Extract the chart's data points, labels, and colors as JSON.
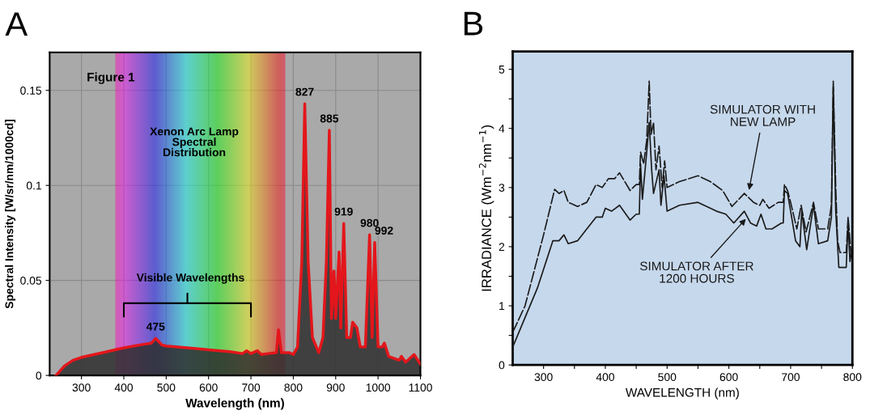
{
  "chart_data": [
    {
      "type": "area",
      "title": "A",
      "xlabel": "Wavelength (nm)",
      "ylabel": "Spectral Intensity [W/sr/nm/1000cd]",
      "xlim": [
        225,
        1100
      ],
      "xticks": [
        300,
        400,
        500,
        600,
        700,
        800,
        900,
        1000,
        1100
      ],
      "ylim": [
        0,
        0.17
      ],
      "yticks": [
        0,
        0.05,
        0.1,
        0.15
      ],
      "grid": true,
      "legend": false,
      "series": [
        {
          "color": "#e3161b",
          "x": [
            240,
            260,
            280,
            300,
            350,
            400,
            450,
            465,
            475,
            490,
            500,
            550,
            600,
            650,
            680,
            690,
            700,
            715,
            725,
            740,
            760,
            765,
            772,
            790,
            800,
            810,
            820,
            827,
            835,
            845,
            860,
            870,
            878,
            885,
            890,
            896,
            900,
            908,
            912,
            919,
            926,
            935,
            940,
            950,
            958,
            970,
            980,
            986,
            992,
            1000,
            1010,
            1015,
            1025,
            1050,
            1055,
            1065,
            1085,
            1100
          ],
          "values": [
            0,
            0.005,
            0.008,
            0.0095,
            0.012,
            0.0145,
            0.0165,
            0.017,
            0.0195,
            0.016,
            0.0155,
            0.0145,
            0.0135,
            0.0125,
            0.0115,
            0.013,
            0.0115,
            0.013,
            0.011,
            0.0115,
            0.012,
            0.024,
            0.012,
            0.012,
            0.011,
            0.015,
            0.06,
            0.143,
            0.06,
            0.02,
            0.012,
            0.02,
            0.06,
            0.129,
            0.03,
            0.055,
            0.03,
            0.065,
            0.025,
            0.08,
            0.02,
            0.02,
            0.028,
            0.025,
            0.015,
            0.015,
            0.074,
            0.02,
            0.07,
            0.015,
            0.015,
            0.017,
            0.01,
            0.008,
            0.01,
            0.007,
            0.011,
            0.006
          ]
        }
      ],
      "annotations": [
        "Figure 1",
        "Xenon Arc Lamp\nSpectral\nDistribution",
        "Visible Wavelengths",
        {
          "text": "475",
          "x": 475,
          "y": 0.0195
        },
        {
          "text": "827",
          "x": 827,
          "y": 0.143
        },
        {
          "text": "885",
          "x": 885,
          "y": 0.129
        },
        {
          "text": "919",
          "x": 919,
          "y": 0.08
        },
        {
          "text": "980",
          "x": 980,
          "y": 0.074
        },
        {
          "text": "992",
          "x": 992,
          "y": 0.07
        }
      ]
    },
    {
      "type": "line",
      "title": "B",
      "xlabel": "WAVELENGTH (nm)",
      "ylabel": "IRRADIANCE (Wm$^{−2}$nm$^{−1}$)",
      "xlim": [
        250,
        800
      ],
      "xticks": [
        300,
        {
          "value": 350,
          "label": null
        },
        400,
        {
          "value": 450,
          "label": null
        },
        500,
        {
          "value": 550,
          "label": null
        },
        600,
        {
          "value": 650,
          "label": null
        },
        700,
        {
          "value": 750,
          "label": null
        },
        800
      ],
      "ylim": [
        0,
        5.3
      ],
      "yticks": [
        0,
        {
          "value": 0.5,
          "label": null
        },
        1,
        {
          "value": 1.5,
          "label": null
        },
        2,
        {
          "value": 2.5,
          "label": null
        },
        3,
        {
          "value": 3.5,
          "label": null
        },
        4,
        {
          "value": 4.5,
          "label": null
        },
        5
      ],
      "grid": false,
      "legend": false,
      "series": [
        {
          "name": "SIMULATOR WITH\nNEW LAMP",
          "color": "#1a1a1a",
          "line_style": "dashed",
          "x": [
            250,
            270,
            300,
            318,
            325,
            333,
            340,
            355,
            370,
            385,
            395,
            405,
            415,
            423,
            440,
            450,
            455,
            457,
            462,
            467,
            471,
            474,
            478,
            482,
            487,
            492,
            496,
            500,
            520,
            550,
            570,
            590,
            605,
            625,
            640,
            650,
            655,
            665,
            680,
            688,
            690,
            695,
            700,
            710,
            717,
            725,
            737,
            745,
            760,
            766,
            769,
            773,
            776,
            780,
            790,
            793,
            798,
            800
          ],
          "values": [
            0.55,
            1.0,
            2.2,
            2.97,
            2.9,
            2.95,
            2.75,
            2.68,
            2.75,
            3.05,
            3.0,
            3.15,
            3.15,
            3.25,
            2.95,
            3.05,
            3.05,
            3.6,
            3.4,
            3.8,
            4.8,
            3.9,
            4.1,
            3.3,
            3.7,
            3.0,
            3.45,
            3.0,
            3.1,
            3.2,
            3.1,
            2.95,
            2.68,
            2.9,
            2.75,
            2.7,
            2.8,
            2.65,
            2.75,
            2.75,
            3.05,
            2.95,
            2.75,
            2.3,
            2.7,
            2.25,
            2.75,
            2.3,
            2.3,
            2.7,
            4.8,
            3.0,
            2.1,
            1.9,
            1.9,
            2.5,
            1.85,
            2.05
          ]
        },
        {
          "name": "SIMULATOR AFTER\n1200 HOURS",
          "color": "#1a1a1a",
          "line_style": "solid",
          "x": [
            250,
            270,
            290,
            315,
            325,
            333,
            340,
            355,
            370,
            385,
            395,
            400,
            410,
            423,
            440,
            450,
            455,
            457,
            460,
            467,
            471,
            475,
            478,
            487,
            490,
            495,
            500,
            520,
            550,
            580,
            595,
            608,
            625,
            635,
            645,
            652,
            660,
            670,
            685,
            688,
            690,
            695,
            700,
            708,
            715,
            718,
            726,
            737,
            745,
            760,
            766,
            769,
            773,
            778,
            785,
            790,
            793,
            796,
            800
          ],
          "values": [
            0.3,
            0.8,
            1.3,
            2.1,
            2.1,
            2.2,
            2.05,
            2.1,
            2.3,
            2.5,
            2.5,
            2.65,
            2.6,
            2.7,
            2.45,
            2.55,
            2.55,
            3.4,
            2.8,
            3.6,
            4.1,
            3.3,
            2.9,
            3.3,
            2.7,
            3.2,
            2.6,
            2.7,
            2.75,
            2.6,
            2.55,
            2.4,
            2.6,
            2.4,
            2.35,
            2.55,
            2.3,
            2.3,
            2.4,
            2.4,
            2.95,
            2.9,
            2.6,
            2.1,
            2.0,
            2.6,
            1.95,
            2.7,
            2.05,
            2.1,
            2.5,
            4.7,
            2.6,
            1.65,
            1.65,
            1.65,
            2.4,
            1.75,
            2.0
          ]
        }
      ]
    }
  ]
}
